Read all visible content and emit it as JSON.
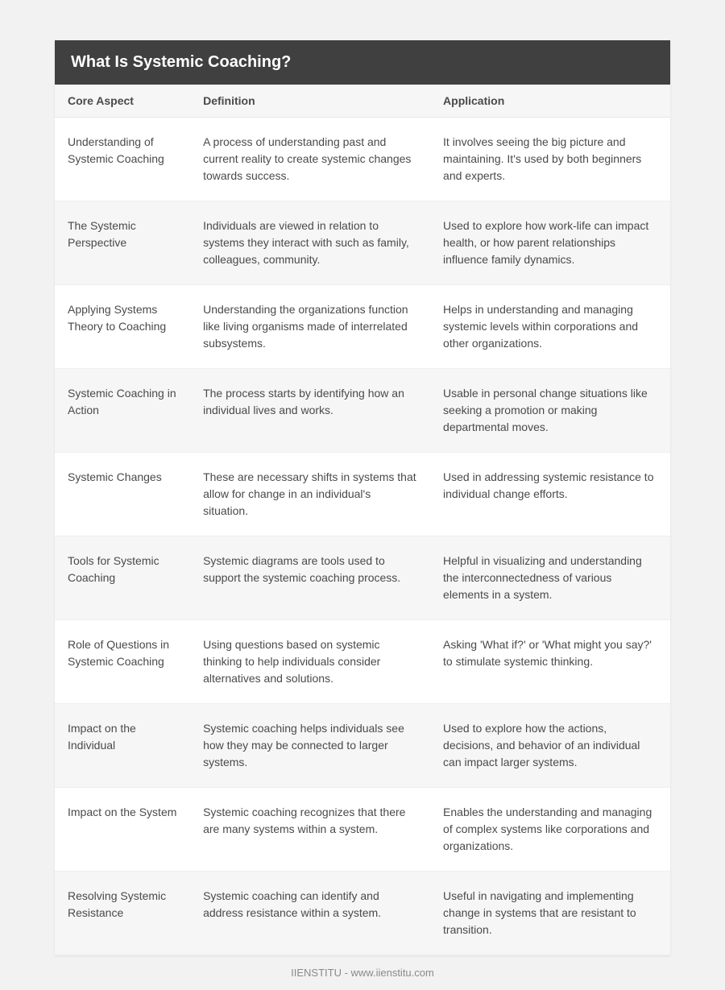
{
  "title": "What Is Systemic Coaching?",
  "columns": [
    "Core Aspect",
    "Definition",
    "Application"
  ],
  "rows": [
    {
      "aspect": "Understanding of Systemic Coaching",
      "definition": "A process of understanding past and current reality to create systemic changes towards success.",
      "application": "It involves seeing the big picture and maintaining. It's used by both beginners and experts."
    },
    {
      "aspect": "The Systemic Perspective",
      "definition": "Individuals are viewed in relation to systems they interact with such as family, colleagues, community.",
      "application": "Used to explore how work-life can impact health, or how parent relationships influence family dynamics."
    },
    {
      "aspect": "Applying Systems Theory to Coaching",
      "definition": "Understanding the organizations function like living organisms made of interrelated subsystems.",
      "application": "Helps in understanding and managing systemic levels within corporations and other organizations."
    },
    {
      "aspect": "Systemic Coaching in Action",
      "definition": "The process starts by identifying how an individual lives and works.",
      "application": "Usable in personal change situations like seeking a promotion or making departmental moves."
    },
    {
      "aspect": "Systemic Changes",
      "definition": "These are necessary shifts in systems that allow for change in an individual's situation.",
      "application": "Used in addressing systemic resistance to individual change efforts."
    },
    {
      "aspect": "Tools for Systemic Coaching",
      "definition": "Systemic diagrams are tools used to support the systemic coaching process.",
      "application": "Helpful in visualizing and understanding the interconnectedness of various elements in a system."
    },
    {
      "aspect": "Role of Questions in Systemic Coaching",
      "definition": "Using questions based on systemic thinking to help individuals consider alternatives and solutions.",
      "application": "Asking 'What if?' or 'What might you say?' to stimulate systemic thinking."
    },
    {
      "aspect": "Impact on the Individual",
      "definition": "Systemic coaching helps individuals see how they may be connected to larger systems.",
      "application": "Used to explore how the actions, decisions, and behavior of an individual can impact larger systems."
    },
    {
      "aspect": "Impact on the System",
      "definition": "Systemic coaching recognizes that there are many systems within a system.",
      "application": "Enables the understanding and managing of complex systems like corporations and organizations."
    },
    {
      "aspect": "Resolving Systemic Resistance",
      "definition": "Systemic coaching can identify and address resistance within a system.",
      "application": "Useful in navigating and implementing change in systems that are resistant to transition."
    }
  ],
  "footer": "IIENSTITU - www.iienstitu.com",
  "style": {
    "page_bg": "#f2f2f2",
    "card_bg": "#ffffff",
    "title_bg": "#404040",
    "title_color": "#ffffff",
    "header_bg": "#f6f6f6",
    "row_alt_bg": "#f6f6f6",
    "text_color": "#4a4a4a",
    "footer_color": "#8a8a8a",
    "title_fontsize": 20,
    "header_fontsize": 14,
    "cell_fontsize": 14,
    "footer_fontsize": 13,
    "col_widths": [
      "22%",
      "39%",
      "39%"
    ]
  }
}
